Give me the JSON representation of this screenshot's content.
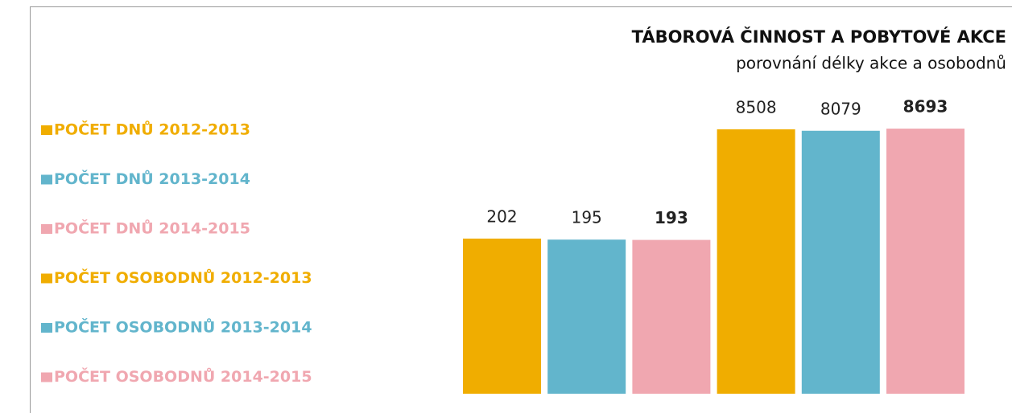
{
  "chart_data": {
    "type": "bar",
    "title": "TÁBOROVÁ ČINNOST A  POBYTOVÉ AKCE",
    "subtitle": "porovnání  délky akce a osobodnů",
    "log": true,
    "ylim": [
      1,
      10000
    ],
    "legend": "left",
    "series": [
      {
        "name": "POČET DNŮ 2012-2013",
        "color": "#f0ad00",
        "values": [
          202
        ]
      },
      {
        "name": "POČET DNŮ 2013-2014",
        "color": "#62b5cc",
        "values": [
          195
        ]
      },
      {
        "name": "POČET DNŮ 2014-2015",
        "color": "#f0a7b0",
        "values": [
          193
        ]
      },
      {
        "name": "POČET OSOBODNŮ 2012-2013",
        "color": "#f0ad00",
        "values": [
          8508
        ]
      },
      {
        "name": "POČET OSOBODNŮ 2013-2014",
        "color": "#62b5cc",
        "values": [
          8079
        ]
      },
      {
        "name": "POČET OSOBODNŮ 2014-2015",
        "color": "#f0a7b0",
        "values": [
          8693
        ]
      }
    ]
  }
}
